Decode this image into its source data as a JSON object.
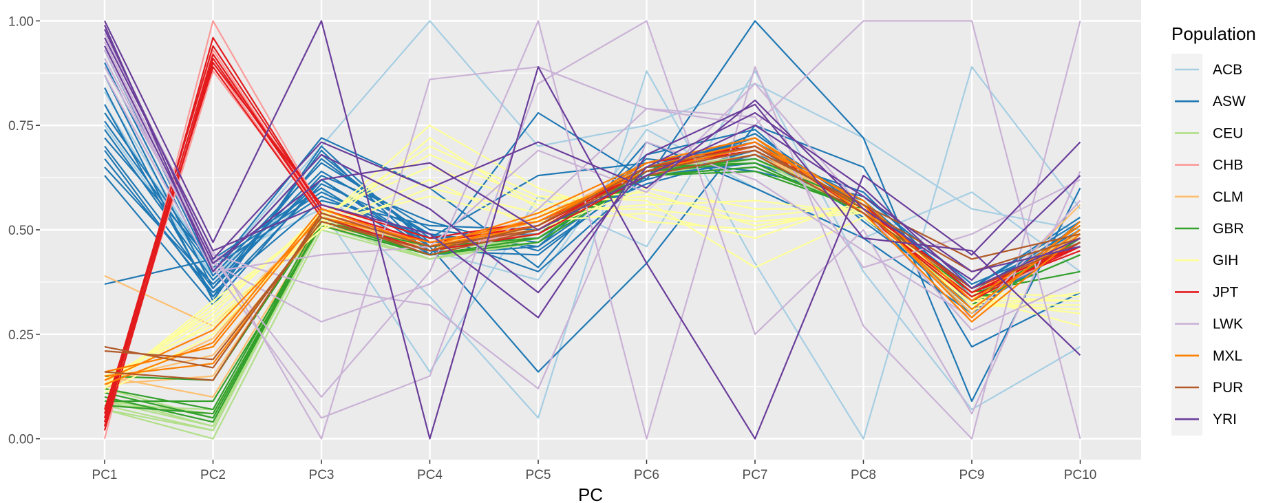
{
  "chart_data": {
    "type": "line",
    "title": "",
    "xlabel": "PC",
    "ylabel": "",
    "categories": [
      "PC1",
      "PC2",
      "PC3",
      "PC4",
      "PC5",
      "PC6",
      "PC7",
      "PC8",
      "PC9",
      "PC10"
    ],
    "ylim": [
      -0.05,
      1.05
    ],
    "y_ticks": [
      0.0,
      0.25,
      0.5,
      0.75,
      1.0
    ],
    "y_tick_labels": [
      "0.00",
      "0.25",
      "0.50",
      "0.75",
      "1.00"
    ],
    "grid": true,
    "legend": {
      "title": "Population",
      "position": "right",
      "entries": [
        "ACB",
        "ASW",
        "CEU",
        "CHB",
        "CLM",
        "GBR",
        "GIH",
        "JPT",
        "LWK",
        "MXL",
        "PUR",
        "YRI"
      ]
    },
    "series": [
      {
        "name": "ACB",
        "color": "#a6cee3",
        "lines": [
          [
            0.83,
            0.4,
            0.7,
            1.0,
            0.7,
            0.75,
            0.85,
            0.72,
            0.55,
            0.5
          ],
          [
            0.8,
            0.38,
            0.6,
            0.34,
            0.05,
            0.88,
            0.42,
            0.0,
            0.89,
            0.55
          ],
          [
            0.78,
            0.42,
            0.55,
            0.16,
            0.58,
            0.46,
            0.88,
            0.4,
            0.07,
            0.22
          ],
          [
            0.75,
            0.39,
            0.62,
            0.45,
            0.38,
            0.74,
            0.6,
            0.48,
            0.59,
            0.4
          ]
        ]
      },
      {
        "name": "ASW",
        "color": "#1f78b4",
        "lines": [
          [
            0.37,
            0.43,
            0.6,
            0.44,
            0.78,
            0.62,
            1.0,
            0.72,
            0.09,
            0.6
          ],
          [
            0.63,
            0.32,
            0.62,
            0.46,
            0.16,
            0.42,
            0.75,
            0.65,
            0.22,
            0.35
          ],
          [
            0.93,
            0.4,
            0.72,
            0.6,
            0.41,
            0.71,
            0.6,
            0.48,
            0.3,
            0.5
          ],
          [
            0.87,
            0.36,
            0.67,
            0.48,
            0.63,
            0.66,
            0.7,
            0.55,
            0.35,
            0.5
          ],
          [
            0.8,
            0.34,
            0.69,
            0.44,
            0.46,
            0.68,
            0.74,
            0.52,
            0.33,
            0.51
          ],
          [
            0.74,
            0.38,
            0.64,
            0.49,
            0.4,
            0.63,
            0.66,
            0.57,
            0.31,
            0.47
          ],
          [
            0.72,
            0.42,
            0.59,
            0.47,
            0.48,
            0.65,
            0.72,
            0.56,
            0.36,
            0.53
          ],
          [
            0.67,
            0.35,
            0.57,
            0.51,
            0.5,
            0.61,
            0.68,
            0.59,
            0.34,
            0.49
          ],
          [
            0.65,
            0.37,
            0.62,
            0.45,
            0.44,
            0.64,
            0.7,
            0.54,
            0.3,
            0.52
          ],
          [
            0.9,
            0.39,
            0.66,
            0.5,
            0.47,
            0.67,
            0.64,
            0.58,
            0.37,
            0.48
          ],
          [
            0.84,
            0.33,
            0.7,
            0.46,
            0.52,
            0.62,
            0.69,
            0.53,
            0.32,
            0.5
          ],
          [
            0.78,
            0.41,
            0.58,
            0.48,
            0.49,
            0.66,
            0.71,
            0.57,
            0.35,
            0.51
          ],
          [
            0.7,
            0.36,
            0.63,
            0.52,
            0.45,
            0.63,
            0.73,
            0.55,
            0.33,
            0.49
          ],
          [
            0.76,
            0.4,
            0.68,
            0.47,
            0.51,
            0.65,
            0.67,
            0.56,
            0.36,
            0.52
          ],
          [
            0.69,
            0.34,
            0.61,
            0.49,
            0.46,
            0.64,
            0.72,
            0.54,
            0.31,
            0.48
          ]
        ]
      },
      {
        "name": "CEU",
        "color": "#b2df8a",
        "lines": [
          [
            0.07,
            0.0,
            0.5,
            0.43,
            0.47,
            0.63,
            0.68,
            0.54,
            0.33,
            0.47
          ],
          [
            0.08,
            0.02,
            0.52,
            0.44,
            0.48,
            0.64,
            0.68,
            0.55,
            0.34,
            0.48
          ],
          [
            0.09,
            0.03,
            0.53,
            0.45,
            0.49,
            0.64,
            0.69,
            0.55,
            0.33,
            0.49
          ],
          [
            0.1,
            0.04,
            0.51,
            0.43,
            0.48,
            0.63,
            0.67,
            0.54,
            0.32,
            0.48
          ],
          [
            0.11,
            0.05,
            0.54,
            0.46,
            0.5,
            0.65,
            0.69,
            0.56,
            0.35,
            0.49
          ],
          [
            0.09,
            0.06,
            0.52,
            0.44,
            0.47,
            0.63,
            0.68,
            0.55,
            0.33,
            0.47
          ],
          [
            0.08,
            0.07,
            0.53,
            0.45,
            0.49,
            0.64,
            0.67,
            0.54,
            0.34,
            0.48
          ],
          [
            0.1,
            0.03,
            0.51,
            0.44,
            0.48,
            0.65,
            0.69,
            0.56,
            0.32,
            0.49
          ],
          [
            0.12,
            0.05,
            0.53,
            0.43,
            0.49,
            0.64,
            0.68,
            0.55,
            0.33,
            0.48
          ],
          [
            0.07,
            0.02,
            0.52,
            0.45,
            0.48,
            0.63,
            0.68,
            0.54,
            0.34,
            0.47
          ]
        ]
      },
      {
        "name": "CHB",
        "color": "#fb9a99",
        "lines": [
          [
            0.0,
            1.0,
            0.55,
            0.47,
            0.5,
            0.65,
            0.7,
            0.55,
            0.35,
            0.46
          ],
          [
            0.02,
            0.93,
            0.54,
            0.46,
            0.51,
            0.64,
            0.69,
            0.56,
            0.34,
            0.47
          ],
          [
            0.03,
            0.9,
            0.53,
            0.45,
            0.5,
            0.63,
            0.7,
            0.55,
            0.33,
            0.46
          ],
          [
            0.05,
            0.92,
            0.55,
            0.46,
            0.49,
            0.64,
            0.69,
            0.54,
            0.35,
            0.48
          ],
          [
            0.04,
            0.88,
            0.54,
            0.47,
            0.5,
            0.65,
            0.71,
            0.55,
            0.34,
            0.47
          ]
        ]
      },
      {
        "name": "CLM",
        "color": "#fdbf6f",
        "lines": [
          [
            0.39,
            0.27,
            0.53,
            0.46,
            0.53,
            0.65,
            0.7,
            0.55,
            0.3,
            0.56
          ],
          [
            0.15,
            0.1,
            0.52,
            0.45,
            0.51,
            0.64,
            0.69,
            0.54,
            0.33,
            0.49
          ],
          [
            0.13,
            0.15,
            0.53,
            0.47,
            0.5,
            0.65,
            0.7,
            0.55,
            0.34,
            0.48
          ],
          [
            0.14,
            0.2,
            0.51,
            0.46,
            0.52,
            0.63,
            0.68,
            0.56,
            0.32,
            0.5
          ],
          [
            0.12,
            0.24,
            0.54,
            0.45,
            0.51,
            0.64,
            0.69,
            0.54,
            0.35,
            0.49
          ]
        ]
      },
      {
        "name": "GBR",
        "color": "#33a02c",
        "lines": [
          [
            0.1,
            0.04,
            0.52,
            0.44,
            0.48,
            0.63,
            0.64,
            0.55,
            0.33,
            0.44
          ],
          [
            0.12,
            0.07,
            0.53,
            0.45,
            0.49,
            0.64,
            0.66,
            0.54,
            0.34,
            0.47
          ],
          [
            0.09,
            0.09,
            0.51,
            0.44,
            0.47,
            0.63,
            0.65,
            0.55,
            0.32,
            0.48
          ],
          [
            0.11,
            0.05,
            0.52,
            0.46,
            0.48,
            0.64,
            0.67,
            0.56,
            0.33,
            0.44
          ],
          [
            0.15,
            0.14,
            0.53,
            0.45,
            0.49,
            0.65,
            0.66,
            0.54,
            0.35,
            0.4
          ],
          [
            0.08,
            0.06,
            0.52,
            0.44,
            0.48,
            0.63,
            0.65,
            0.55,
            0.34,
            0.47
          ]
        ]
      },
      {
        "name": "GIH",
        "color": "#ffff99",
        "lines": [
          [
            0.12,
            0.33,
            0.52,
            0.75,
            0.6,
            0.52,
            0.5,
            0.56,
            0.32,
            0.32
          ],
          [
            0.14,
            0.29,
            0.5,
            0.72,
            0.55,
            0.55,
            0.52,
            0.54,
            0.33,
            0.3
          ],
          [
            0.13,
            0.31,
            0.53,
            0.7,
            0.58,
            0.57,
            0.41,
            0.53,
            0.34,
            0.27
          ],
          [
            0.15,
            0.27,
            0.51,
            0.62,
            0.5,
            0.6,
            0.55,
            0.55,
            0.31,
            0.35
          ],
          [
            0.11,
            0.25,
            0.52,
            0.58,
            0.52,
            0.54,
            0.48,
            0.57,
            0.33,
            0.33
          ],
          [
            0.14,
            0.3,
            0.54,
            0.65,
            0.56,
            0.58,
            0.53,
            0.56,
            0.35,
            0.34
          ],
          [
            0.13,
            0.28,
            0.5,
            0.6,
            0.54,
            0.56,
            0.57,
            0.54,
            0.32,
            0.31
          ],
          [
            0.12,
            0.32,
            0.53,
            0.68,
            0.57,
            0.59,
            0.51,
            0.55,
            0.34,
            0.33
          ]
        ]
      },
      {
        "name": "JPT",
        "color": "#e31a1c",
        "lines": [
          [
            0.03,
            0.96,
            0.55,
            0.47,
            0.51,
            0.64,
            0.7,
            0.55,
            0.36,
            0.46
          ],
          [
            0.05,
            0.92,
            0.54,
            0.46,
            0.5,
            0.65,
            0.69,
            0.56,
            0.35,
            0.47
          ],
          [
            0.04,
            0.9,
            0.56,
            0.48,
            0.52,
            0.64,
            0.71,
            0.54,
            0.34,
            0.46
          ],
          [
            0.06,
            0.94,
            0.55,
            0.47,
            0.51,
            0.66,
            0.7,
            0.55,
            0.36,
            0.48
          ],
          [
            0.02,
            0.91,
            0.54,
            0.46,
            0.5,
            0.64,
            0.69,
            0.56,
            0.35,
            0.45
          ],
          [
            0.07,
            0.89,
            0.53,
            0.45,
            0.49,
            0.63,
            0.68,
            0.54,
            0.33,
            0.47
          ]
        ]
      },
      {
        "name": "LWK",
        "color": "#cab2d6",
        "lines": [
          [
            0.97,
            0.45,
            0.0,
            0.86,
            0.89,
            0.79,
            0.75,
            1.0,
            1.0,
            0.0
          ],
          [
            0.95,
            0.43,
            0.1,
            0.4,
            1.0,
            0.0,
            0.89,
            0.27,
            0.0,
            1.0
          ],
          [
            0.93,
            0.41,
            0.05,
            0.15,
            0.85,
            1.0,
            0.25,
            0.5,
            0.06,
            0.64
          ],
          [
            0.91,
            0.42,
            0.28,
            0.37,
            0.55,
            0.79,
            0.77,
            0.41,
            0.49,
            0.62
          ],
          [
            0.89,
            0.44,
            0.36,
            0.32,
            0.12,
            0.71,
            0.62,
            0.45,
            0.29,
            0.57
          ],
          [
            0.87,
            0.4,
            0.44,
            0.46,
            0.69,
            0.59,
            0.85,
            0.55,
            0.26,
            0.38
          ]
        ]
      },
      {
        "name": "MXL",
        "color": "#ff7f00",
        "lines": [
          [
            0.16,
            0.22,
            0.54,
            0.46,
            0.54,
            0.66,
            0.72,
            0.56,
            0.29,
            0.52
          ],
          [
            0.14,
            0.26,
            0.53,
            0.47,
            0.52,
            0.65,
            0.71,
            0.55,
            0.31,
            0.5
          ],
          [
            0.15,
            0.18,
            0.52,
            0.45,
            0.53,
            0.64,
            0.7,
            0.57,
            0.33,
            0.51
          ],
          [
            0.13,
            0.23,
            0.55,
            0.46,
            0.51,
            0.66,
            0.72,
            0.54,
            0.28,
            0.49
          ]
        ]
      },
      {
        "name": "PUR",
        "color": "#b15928",
        "lines": [
          [
            0.22,
            0.17,
            0.53,
            0.44,
            0.5,
            0.64,
            0.69,
            0.56,
            0.43,
            0.49
          ],
          [
            0.21,
            0.19,
            0.52,
            0.45,
            0.51,
            0.65,
            0.7,
            0.55,
            0.4,
            0.48
          ],
          [
            0.16,
            0.14,
            0.54,
            0.46,
            0.5,
            0.63,
            0.68,
            0.54,
            0.36,
            0.47
          ]
        ]
      },
      {
        "name": "YRI",
        "color": "#6a3d9a",
        "lines": [
          [
            1.0,
            0.47,
            1.0,
            0.0,
            0.89,
            0.42,
            0.0,
            0.63,
            0.44,
            0.71
          ],
          [
            0.98,
            0.43,
            0.71,
            0.6,
            0.71,
            0.6,
            0.81,
            0.55,
            0.38,
            0.63
          ],
          [
            0.96,
            0.45,
            0.56,
            0.49,
            0.29,
            0.68,
            0.8,
            0.48,
            0.45,
            0.2
          ],
          [
            0.99,
            0.4,
            0.68,
            0.55,
            0.35,
            0.65,
            0.78,
            0.6,
            0.36,
            0.48
          ],
          [
            0.94,
            0.42,
            0.62,
            0.66,
            0.5,
            0.63,
            0.75,
            0.58,
            0.4,
            0.46
          ]
        ]
      }
    ]
  }
}
